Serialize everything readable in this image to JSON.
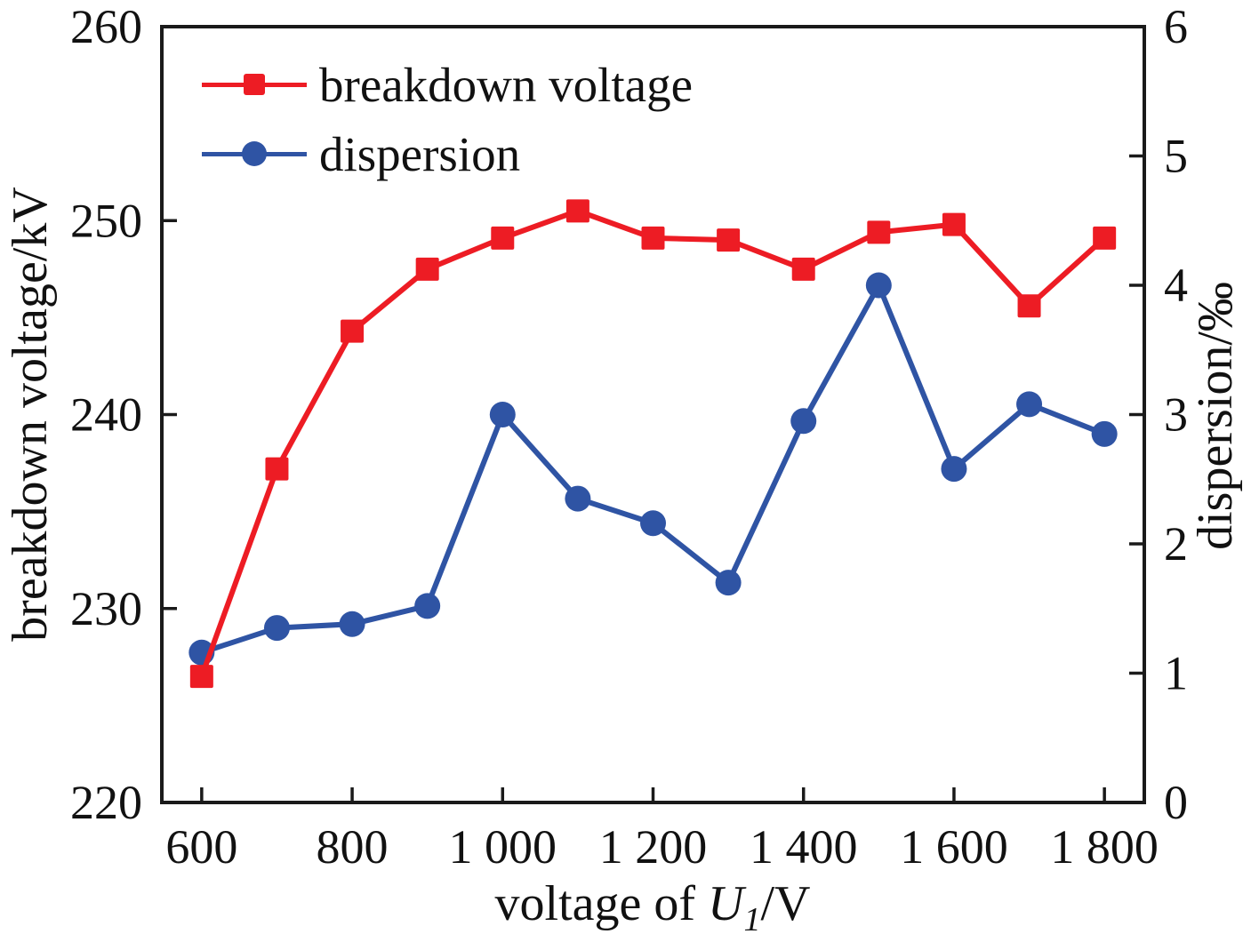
{
  "legend": {
    "items": [
      {
        "label": "breakdown voltage"
      },
      {
        "label": "dispersion"
      }
    ]
  },
  "xlabel_parts": {
    "prefix": "voltage of ",
    "symbol": "U",
    "subscript": "1",
    "suffix": "/V"
  },
  "colors": {
    "background": "#ffffff",
    "axis": "#1a1a1a",
    "text": "#111111",
    "red": "#ed1c24",
    "blue": "#2f54a4"
  },
  "chart_data": {
    "type": "line",
    "x": [
      600,
      700,
      800,
      900,
      1000,
      1100,
      1200,
      1300,
      1400,
      1500,
      1600,
      1700,
      1800
    ],
    "series": [
      {
        "name": "breakdown voltage",
        "axis": "left",
        "color": "#ed1c24",
        "marker": "square",
        "values": [
          226.5,
          237.2,
          244.3,
          247.5,
          249.1,
          250.5,
          249.1,
          249.0,
          247.5,
          249.4,
          249.8,
          245.6,
          249.1
        ]
      },
      {
        "name": "dispersion",
        "axis": "right",
        "color": "#2f54a4",
        "marker": "circle",
        "values": [
          1.16,
          1.35,
          1.38,
          1.52,
          3.0,
          2.35,
          2.16,
          1.7,
          2.95,
          4.0,
          2.58,
          3.08,
          2.85
        ]
      }
    ],
    "xlabel": "voltage of U₁/V",
    "ylabel_left": "breakdown voltage/kV",
    "ylabel_right": "dispersion/‰",
    "xlim": [
      547,
      1853
    ],
    "ylim_left": [
      220,
      260
    ],
    "ylim_right": [
      0,
      6
    ],
    "x_ticks": [
      600,
      800,
      1000,
      1200,
      1400,
      1600,
      1800
    ],
    "x_tick_labels": [
      "600",
      "800",
      "1 000",
      "1 200",
      "1 400",
      "1 600",
      "1 800"
    ],
    "y_ticks_left": [
      220,
      230,
      240,
      250,
      260
    ],
    "y_tick_labels_left": [
      "220",
      "230",
      "240",
      "250",
      "260"
    ],
    "y_ticks_right": [
      0,
      1,
      2,
      3,
      4,
      5,
      6
    ],
    "y_tick_labels_right": [
      "0",
      "1",
      "2",
      "3",
      "4",
      "5",
      "6"
    ],
    "grid": false,
    "legend_position": "top-left"
  }
}
